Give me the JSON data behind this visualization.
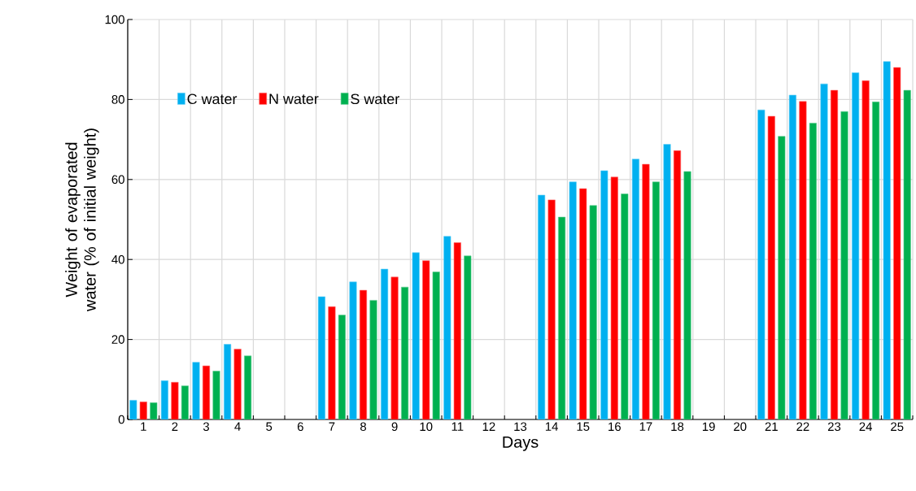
{
  "chart_data": {
    "type": "bar",
    "xlabel": "Days",
    "ylabel": "Weight of evaporated water (% of initial weight)",
    "categories": [
      "1",
      "2",
      "3",
      "4",
      "5",
      "6",
      "7",
      "8",
      "9",
      "10",
      "11",
      "12",
      "13",
      "14",
      "15",
      "16",
      "17",
      "18",
      "19",
      "20",
      "21",
      "22",
      "23",
      "24",
      "25"
    ],
    "series": [
      {
        "name": "C water",
        "color": "#00b0f0",
        "values": [
          4.8,
          9.7,
          14.3,
          18.8,
          null,
          null,
          30.7,
          34.4,
          37.6,
          41.7,
          45.8,
          null,
          null,
          56.1,
          59.4,
          62.2,
          65.1,
          68.8,
          null,
          null,
          77.4,
          81.1,
          83.9,
          86.7,
          89.5
        ]
      },
      {
        "name": "N water",
        "color": "#ff0000",
        "values": [
          4.4,
          9.3,
          13.4,
          17.6,
          null,
          null,
          28.2,
          32.3,
          35.6,
          39.7,
          44.2,
          null,
          null,
          54.9,
          57.7,
          60.6,
          63.8,
          67.2,
          null,
          null,
          75.8,
          79.5,
          82.3,
          84.7,
          88.0
        ]
      },
      {
        "name": "S water",
        "color": "#00b050",
        "values": [
          4.2,
          8.4,
          12.1,
          15.9,
          null,
          null,
          26.1,
          29.8,
          33.1,
          36.9,
          40.9,
          null,
          null,
          50.6,
          53.5,
          56.4,
          59.4,
          62.0,
          null,
          null,
          70.8,
          74.1,
          77.0,
          79.4,
          82.3
        ]
      }
    ],
    "ylim": [
      0,
      100
    ],
    "yticks": [
      0,
      20,
      40,
      60,
      80,
      100
    ],
    "grid": true,
    "legend": "top left"
  }
}
